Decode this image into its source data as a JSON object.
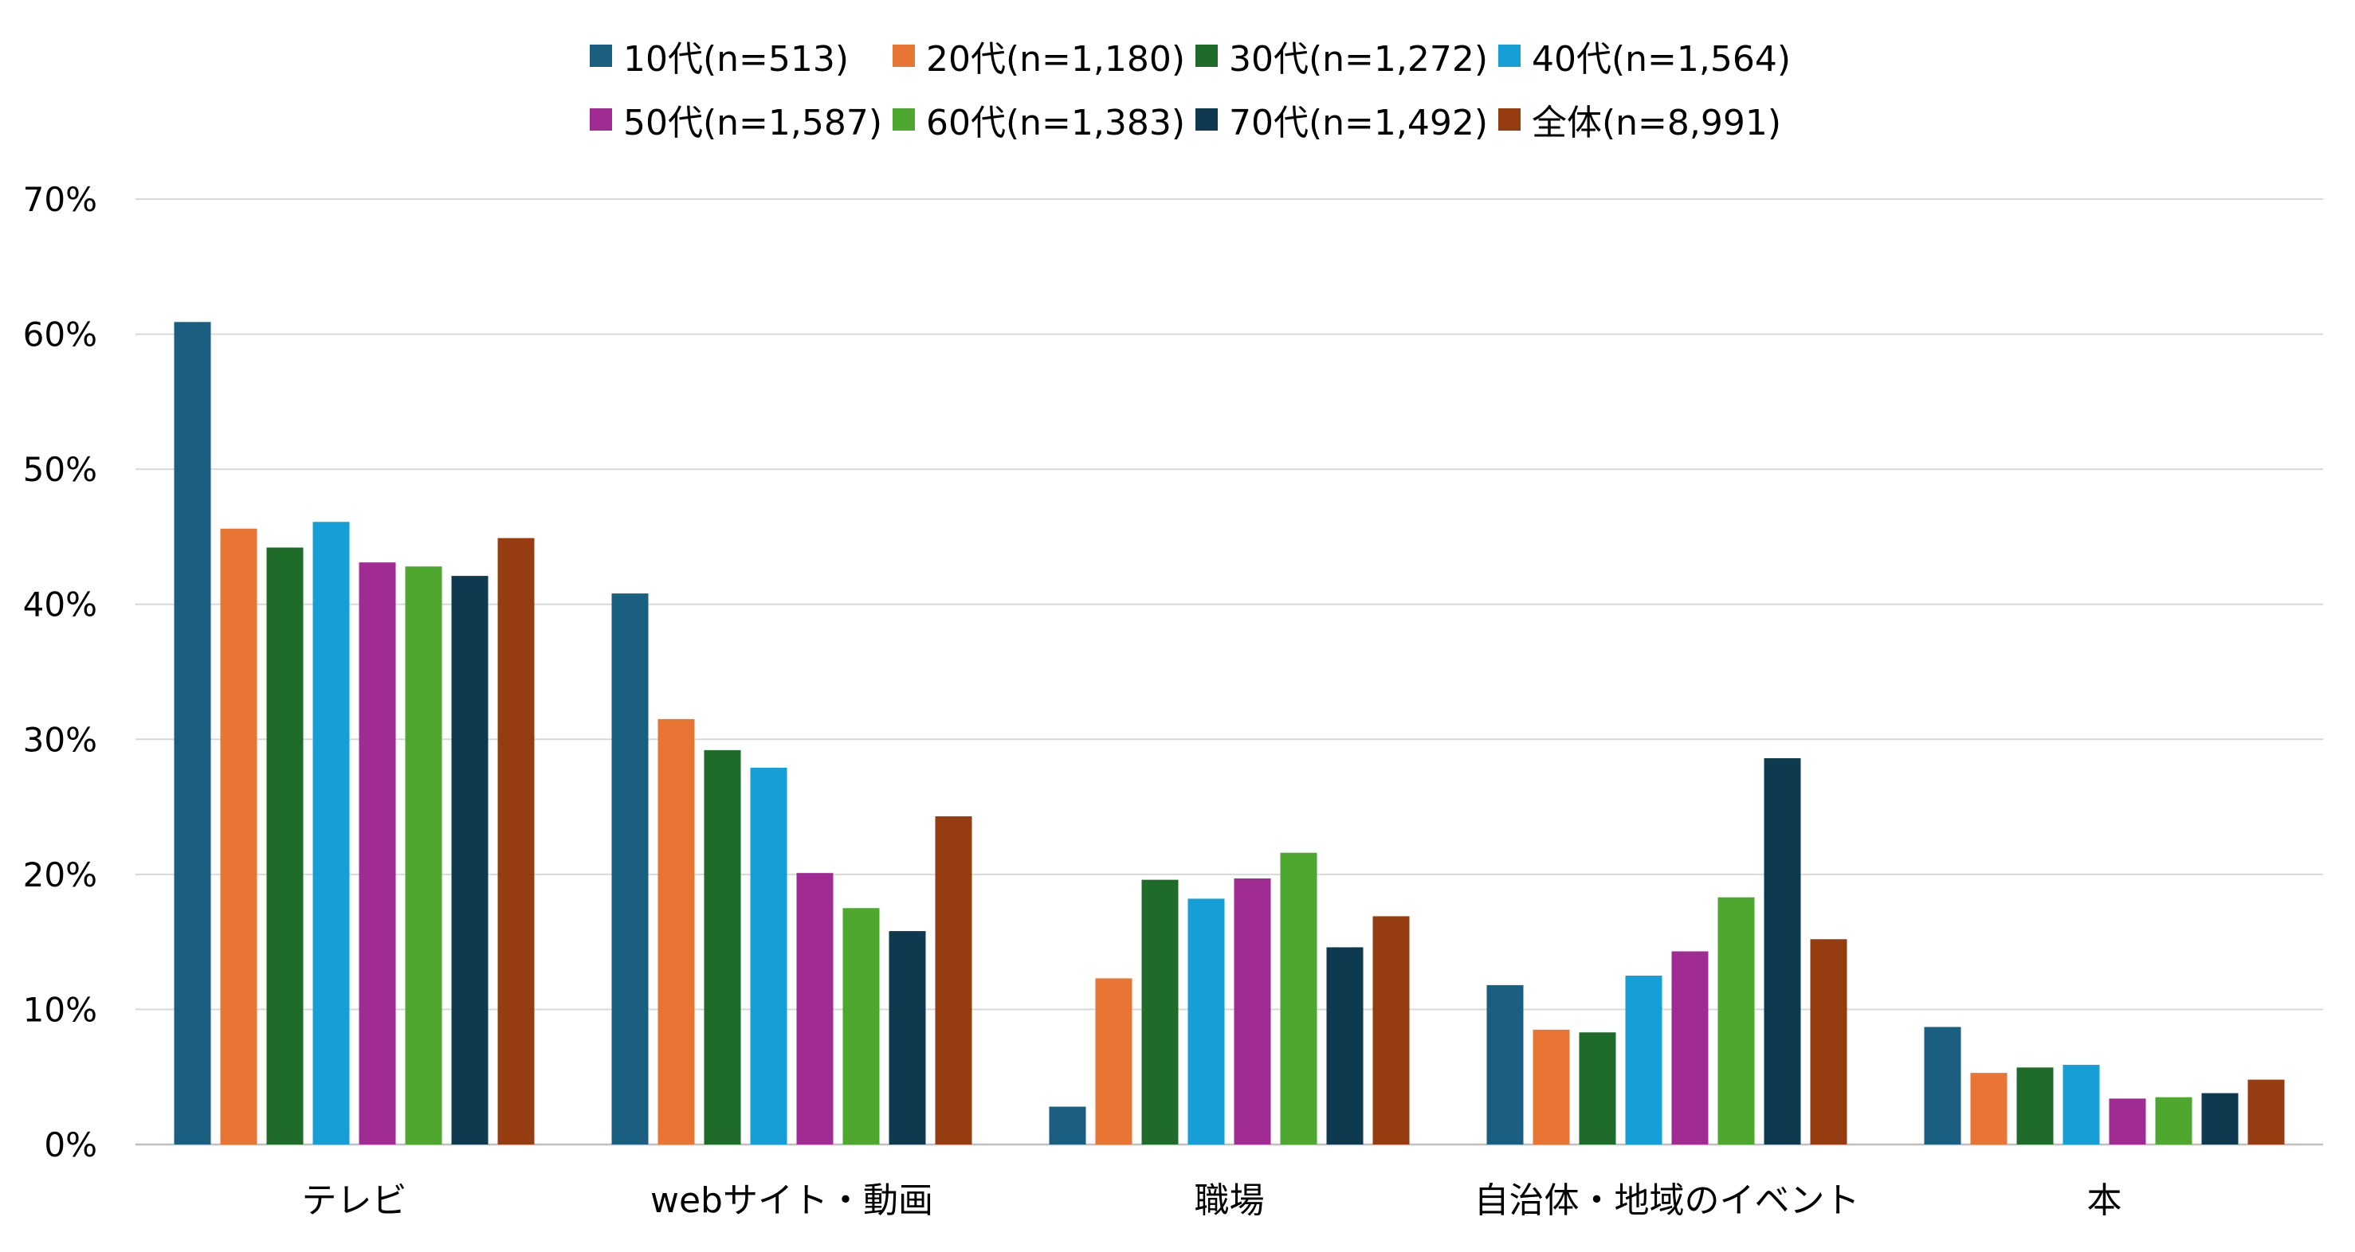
{
  "chart_data": {
    "type": "bar",
    "categories": [
      "テレビ",
      "webサイト・動画",
      "職場",
      "自治体・地域のイベント",
      "本"
    ],
    "series": [
      {
        "name": "10代(n=513)",
        "color": "#1a5f80",
        "values": [
          60.9,
          40.8,
          2.8,
          11.8,
          8.7
        ]
      },
      {
        "name": "20代(n=1,180)",
        "color": "#e87533",
        "values": [
          45.6,
          31.5,
          12.3,
          8.5,
          5.3
        ]
      },
      {
        "name": "30代(n=1,272)",
        "color": "#1e6b2a",
        "values": [
          44.2,
          29.2,
          19.6,
          8.3,
          5.7
        ]
      },
      {
        "name": "40代(n=1,564)",
        "color": "#159fd6",
        "values": [
          46.1,
          27.9,
          18.2,
          12.5,
          5.9
        ]
      },
      {
        "name": "50代(n=1,587)",
        "color": "#a02b93",
        "values": [
          43.1,
          20.1,
          19.7,
          14.3,
          3.4
        ]
      },
      {
        "name": "60代(n=1,383)",
        "color": "#4ea72e",
        "values": [
          42.8,
          17.5,
          21.6,
          18.3,
          3.5
        ]
      },
      {
        "name": "70代(n=1,492)",
        "color": "#0e3a50",
        "values": [
          42.1,
          15.8,
          14.6,
          28.6,
          3.8
        ]
      },
      {
        "name": "全体(n=8,991)",
        "color": "#953d10",
        "values": [
          44.9,
          24.3,
          16.9,
          15.2,
          4.8
        ]
      }
    ],
    "ylim": [
      0,
      70
    ],
    "yticks": [
      "0%",
      "10%",
      "20%",
      "30%",
      "40%",
      "50%",
      "60%",
      "70%"
    ],
    "grid": true,
    "legend_position": "top",
    "title": "",
    "xlabel": "",
    "ylabel": ""
  }
}
